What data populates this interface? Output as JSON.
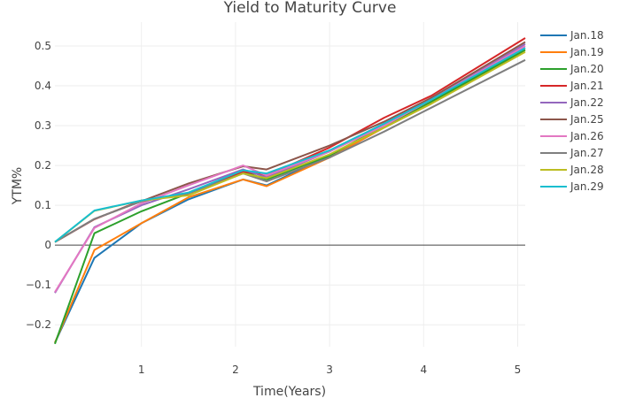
{
  "chart_data": {
    "type": "line",
    "title": "Yield to Maturity Curve",
    "xlabel": "Time(Years)",
    "ylabel": "YTM%",
    "xlim": [
      0.08,
      5.08
    ],
    "ylim": [
      -0.255,
      0.56
    ],
    "xticks": [
      1,
      2,
      3,
      4,
      5
    ],
    "yticks": [
      -0.2,
      -0.1,
      0,
      0.1,
      0.2,
      0.3,
      0.4,
      0.5
    ],
    "ytick_labels": [
      "−0.2",
      "−0.1",
      "0",
      "0.1",
      "0.2",
      "0.3",
      "0.4",
      "0.5"
    ],
    "grid": true,
    "legend_position": "right",
    "series": [
      {
        "name": "Jan.18",
        "color": "#1f77b4",
        "x": [
          0.08,
          0.5,
          1.0,
          1.5,
          2.08,
          2.33,
          3.0,
          3.58,
          4.08,
          5.08
        ],
        "y": [
          -0.245,
          -0.032,
          0.055,
          0.115,
          0.165,
          0.15,
          0.225,
          0.3,
          0.36,
          0.495
        ]
      },
      {
        "name": "Jan.19",
        "color": "#ff7f0e",
        "x": [
          0.08,
          0.5,
          1.0,
          1.5,
          2.08,
          2.33,
          3.0,
          3.58,
          4.08,
          5.08
        ],
        "y": [
          -0.245,
          -0.012,
          0.055,
          0.12,
          0.165,
          0.148,
          0.22,
          0.295,
          0.355,
          0.49
        ]
      },
      {
        "name": "Jan.20",
        "color": "#2ca02c",
        "x": [
          0.08,
          0.5,
          1.0,
          1.5,
          2.08,
          2.33,
          3.0,
          3.58,
          4.08,
          5.08
        ],
        "y": [
          -0.248,
          0.03,
          0.085,
          0.13,
          0.185,
          0.165,
          0.225,
          0.3,
          0.36,
          0.49
        ]
      },
      {
        "name": "Jan.21",
        "color": "#d62728",
        "x": [
          0.08,
          0.5,
          1.0,
          1.5,
          2.08,
          2.33,
          3.0,
          3.58,
          4.08,
          5.08
        ],
        "y": [
          0.008,
          0.065,
          0.112,
          0.13,
          0.185,
          0.175,
          0.245,
          0.32,
          0.375,
          0.52
        ]
      },
      {
        "name": "Jan.22",
        "color": "#9467bd",
        "x": [
          0.08,
          0.5,
          1.0,
          1.5,
          2.08,
          2.33,
          3.0,
          3.58,
          4.08,
          5.08
        ],
        "y": [
          -0.12,
          0.045,
          0.1,
          0.14,
          0.19,
          0.17,
          0.235,
          0.305,
          0.365,
          0.505
        ]
      },
      {
        "name": "Jan.25",
        "color": "#8c564b",
        "x": [
          0.08,
          0.5,
          1.0,
          1.5,
          2.08,
          2.33,
          3.0,
          3.58,
          4.08,
          5.08
        ],
        "y": [
          0.008,
          0.066,
          0.11,
          0.155,
          0.198,
          0.19,
          0.25,
          0.31,
          0.37,
          0.51
        ]
      },
      {
        "name": "Jan.26",
        "color": "#e377c2",
        "x": [
          0.08,
          0.5,
          1.0,
          1.5,
          2.08,
          2.33,
          3.0,
          3.58,
          4.08,
          5.08
        ],
        "y": [
          -0.118,
          0.043,
          0.105,
          0.15,
          0.2,
          0.175,
          0.235,
          0.3,
          0.365,
          0.5
        ]
      },
      {
        "name": "Jan.27",
        "color": "#7f7f7f",
        "x": [
          0.08,
          0.5,
          1.0,
          1.5,
          2.08,
          2.33,
          3.0,
          3.58,
          4.08,
          5.08
        ],
        "y": [
          0.008,
          0.066,
          0.11,
          0.13,
          0.18,
          0.16,
          0.22,
          0.285,
          0.345,
          0.465
        ]
      },
      {
        "name": "Jan.28",
        "color": "#bcbd22",
        "x": [
          0.08,
          0.5,
          1.0,
          1.5,
          2.08,
          2.33,
          3.0,
          3.58,
          4.08,
          5.08
        ],
        "y": [
          0.008,
          0.086,
          0.112,
          0.125,
          0.18,
          0.168,
          0.228,
          0.295,
          0.355,
          0.485
        ]
      },
      {
        "name": "Jan.29",
        "color": "#17becf",
        "x": [
          0.08,
          0.5,
          1.0,
          1.5,
          2.08,
          2.33,
          3.0,
          3.58,
          4.08,
          5.08
        ],
        "y": [
          0.008,
          0.087,
          0.112,
          0.132,
          0.188,
          0.18,
          0.238,
          0.305,
          0.365,
          0.495
        ]
      }
    ]
  }
}
